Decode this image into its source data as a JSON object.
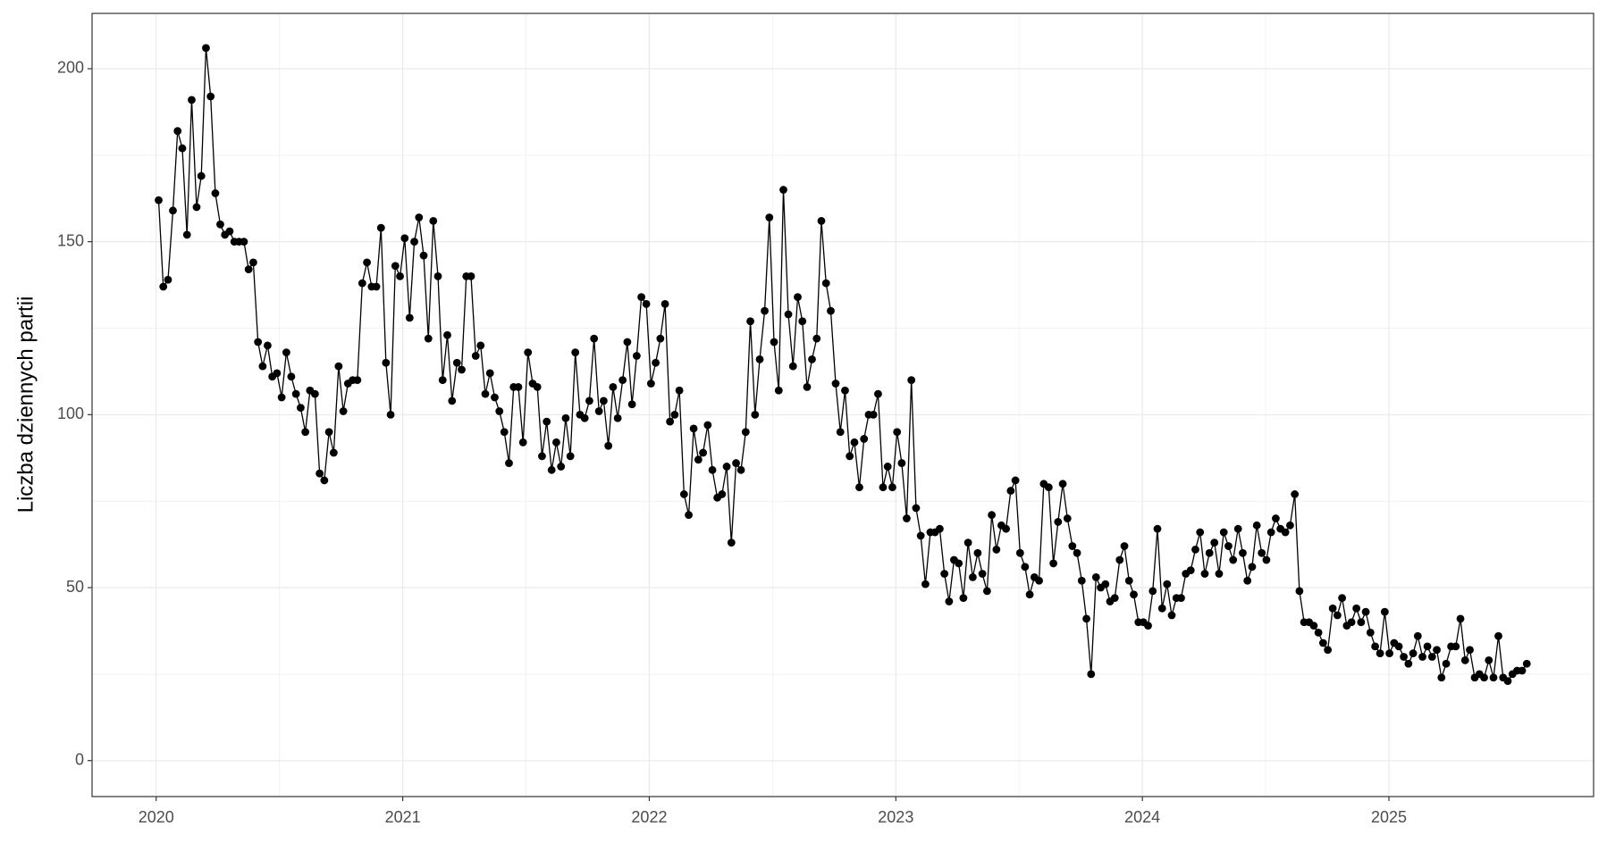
{
  "chart_data": {
    "type": "line",
    "ylabel": "Liczba dziennych partii",
    "xlim": [
      2019.74,
      2025.83
    ],
    "xticks": [
      2020,
      2021,
      2022,
      2023,
      2024,
      2025
    ],
    "ylim": [
      -10.4,
      216
    ],
    "yticks": [
      0,
      50,
      100,
      150,
      200
    ],
    "grid": true,
    "color": "#000000",
    "x": [
      2020.01,
      2020.029,
      2020.048,
      2020.068,
      2020.087,
      2020.106,
      2020.125,
      2020.144,
      2020.164,
      2020.183,
      2020.202,
      2020.221,
      2020.24,
      2020.26,
      2020.279,
      2020.298,
      2020.317,
      2020.336,
      2020.356,
      2020.375,
      2020.394,
      2020.413,
      2020.432,
      2020.452,
      2020.471,
      2020.49,
      2020.509,
      2020.528,
      2020.548,
      2020.567,
      2020.586,
      2020.605,
      2020.624,
      2020.644,
      2020.663,
      2020.682,
      2020.701,
      2020.72,
      2020.74,
      2020.759,
      2020.778,
      2020.797,
      2020.816,
      2020.836,
      2020.855,
      2020.874,
      2020.893,
      2020.912,
      2020.932,
      2020.951,
      2020.97,
      2020.989,
      2021.008,
      2021.028,
      2021.047,
      2021.066,
      2021.085,
      2021.104,
      2021.124,
      2021.143,
      2021.162,
      2021.181,
      2021.2,
      2021.22,
      2021.239,
      2021.258,
      2021.277,
      2021.296,
      2021.316,
      2021.335,
      2021.354,
      2021.373,
      2021.392,
      2021.412,
      2021.431,
      2021.45,
      2021.469,
      2021.488,
      2021.508,
      2021.527,
      2021.546,
      2021.565,
      2021.584,
      2021.604,
      2021.623,
      2021.642,
      2021.661,
      2021.68,
      2021.7,
      2021.719,
      2021.738,
      2021.757,
      2021.776,
      2021.796,
      2021.815,
      2021.834,
      2021.853,
      2021.872,
      2021.892,
      2021.911,
      2021.93,
      2021.949,
      2021.968,
      2021.988,
      2022.007,
      2022.026,
      2022.045,
      2022.064,
      2022.084,
      2022.103,
      2022.122,
      2022.141,
      2022.16,
      2022.18,
      2022.199,
      2022.218,
      2022.237,
      2022.256,
      2022.276,
      2022.295,
      2022.314,
      2022.333,
      2022.352,
      2022.372,
      2022.391,
      2022.41,
      2022.429,
      2022.448,
      2022.468,
      2022.487,
      2022.506,
      2022.525,
      2022.544,
      2022.564,
      2022.583,
      2022.602,
      2022.621,
      2022.64,
      2022.66,
      2022.679,
      2022.698,
      2022.717,
      2022.736,
      2022.756,
      2022.775,
      2022.794,
      2022.813,
      2022.832,
      2022.852,
      2022.871,
      2022.89,
      2022.909,
      2022.928,
      2022.948,
      2022.967,
      2022.986,
      2023.005,
      2023.024,
      2023.044,
      2023.063,
      2023.082,
      2023.101,
      2023.12,
      2023.14,
      2023.159,
      2023.178,
      2023.197,
      2023.216,
      2023.236,
      2023.255,
      2023.274,
      2023.293,
      2023.312,
      2023.332,
      2023.351,
      2023.37,
      2023.389,
      2023.408,
      2023.428,
      2023.447,
      2023.466,
      2023.485,
      2023.504,
      2023.524,
      2023.543,
      2023.562,
      2023.581,
      2023.6,
      2023.62,
      2023.639,
      2023.658,
      2023.677,
      2023.696,
      2023.716,
      2023.735,
      2023.754,
      2023.773,
      2023.792,
      2023.812,
      2023.831,
      2023.85,
      2023.869,
      2023.888,
      2023.908,
      2023.927,
      2023.946,
      2023.965,
      2023.984,
      2024.004,
      2024.023,
      2024.042,
      2024.061,
      2024.08,
      2024.1,
      2024.119,
      2024.138,
      2024.157,
      2024.176,
      2024.196,
      2024.215,
      2024.234,
      2024.253,
      2024.272,
      2024.292,
      2024.311,
      2024.33,
      2024.349,
      2024.368,
      2024.388,
      2024.407,
      2024.426,
      2024.445,
      2024.464,
      2024.484,
      2024.503,
      2024.522,
      2024.541,
      2024.56,
      2024.58,
      2024.599,
      2024.618,
      2024.637,
      2024.656,
      2024.676,
      2024.695,
      2024.714,
      2024.733,
      2024.752,
      2024.772,
      2024.791,
      2024.81,
      2024.829,
      2024.848,
      2024.868,
      2024.887,
      2024.906,
      2024.925,
      2024.944,
      2024.964,
      2024.983,
      2025.002,
      2025.021,
      2025.04,
      2025.06,
      2025.079,
      2025.098,
      2025.117,
      2025.136,
      2025.156,
      2025.175,
      2025.194,
      2025.213,
      2025.232,
      2025.252,
      2025.271,
      2025.29,
      2025.309,
      2025.328,
      2025.348,
      2025.367,
      2025.386,
      2025.405,
      2025.424,
      2025.444,
      2025.463,
      2025.482,
      2025.501,
      2025.52,
      2025.54,
      2025.559
    ],
    "values": [
      162,
      137,
      139,
      159,
      182,
      177,
      152,
      191,
      160,
      169,
      206,
      192,
      164,
      155,
      152,
      153,
      150,
      150,
      150,
      142,
      144,
      121,
      114,
      120,
      111,
      112,
      105,
      118,
      111,
      106,
      102,
      95,
      107,
      106,
      83,
      81,
      95,
      89,
      114,
      101,
      109,
      110,
      110,
      138,
      144,
      137,
      137,
      154,
      115,
      100,
      143,
      140,
      151,
      128,
      150,
      157,
      146,
      122,
      156,
      140,
      110,
      123,
      104,
      115,
      113,
      140,
      140,
      117,
      120,
      106,
      112,
      105,
      101,
      95,
      86,
      108,
      108,
      92,
      118,
      109,
      108,
      88,
      98,
      84,
      92,
      85,
      99,
      88,
      118,
      100,
      99,
      104,
      122,
      101,
      104,
      91,
      108,
      99,
      110,
      121,
      103,
      117,
      134,
      132,
      109,
      115,
      122,
      132,
      98,
      100,
      107,
      77,
      71,
      96,
      87,
      89,
      97,
      84,
      76,
      77,
      85,
      63,
      86,
      84,
      95,
      127,
      100,
      116,
      130,
      157,
      121,
      107,
      165,
      129,
      114,
      134,
      127,
      108,
      116,
      122,
      156,
      138,
      130,
      109,
      95,
      107,
      88,
      92,
      79,
      93,
      100,
      100,
      106,
      79,
      85,
      79,
      95,
      86,
      70,
      110,
      73,
      65,
      51,
      66,
      66,
      67,
      54,
      46,
      58,
      57,
      47,
      63,
      53,
      60,
      54,
      49,
      71,
      61,
      68,
      67,
      78,
      81,
      60,
      56,
      48,
      53,
      52,
      80,
      79,
      57,
      69,
      80,
      70,
      62,
      60,
      52,
      41,
      25,
      53,
      50,
      51,
      46,
      47,
      58,
      62,
      52,
      48,
      40,
      40,
      39,
      49,
      67,
      44,
      51,
      42,
      47,
      47,
      54,
      55,
      61,
      66,
      54,
      60,
      63,
      54,
      66,
      62,
      58,
      67,
      60,
      52,
      56,
      68,
      60,
      58,
      66,
      70,
      67,
      66,
      68,
      77,
      49,
      40,
      40,
      39,
      37,
      34,
      32,
      44,
      42,
      47,
      39,
      40,
      44,
      40,
      43,
      37,
      33,
      31,
      43,
      31,
      34,
      33,
      30,
      28,
      31,
      36,
      30,
      33,
      30,
      32,
      24,
      28,
      33,
      33,
      41,
      29,
      32,
      24,
      25,
      24,
      29,
      24,
      36,
      24,
      23,
      25,
      26,
      26,
      28
    ]
  }
}
